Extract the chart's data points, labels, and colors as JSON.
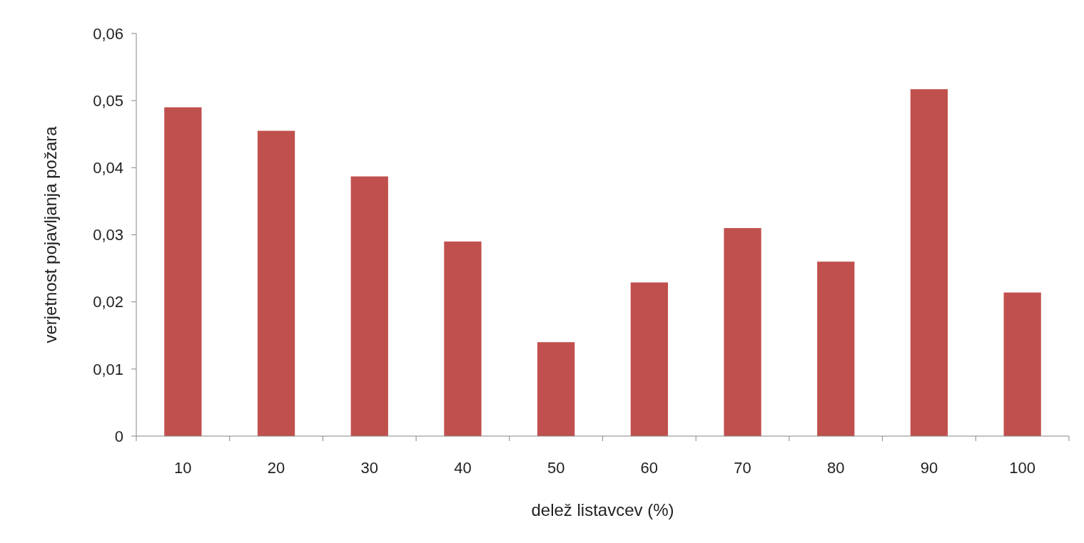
{
  "chart_data": {
    "type": "bar",
    "xlabel": "delež listavcev (%)",
    "ylabel": "verjetnost pojavljanja požara",
    "categories": [
      "10",
      "20",
      "30",
      "40",
      "50",
      "60",
      "70",
      "80",
      "90",
      "100"
    ],
    "values": [
      0.049,
      0.0455,
      0.0387,
      0.029,
      0.014,
      0.0229,
      0.031,
      0.026,
      0.0517,
      0.0214
    ],
    "color": "#c0504d",
    "ylim": [
      0,
      0.06
    ],
    "yticks": [
      0,
      {
        "value": 0.01,
        "label": "0,01"
      },
      {
        "value": 0.02,
        "label": "0,02"
      },
      {
        "value": 0.03,
        "label": "0,03"
      },
      {
        "value": 0.04,
        "label": "0,04"
      },
      {
        "value": 0.05,
        "label": "0,05"
      },
      {
        "value": 0.06,
        "label": "0,06"
      }
    ],
    "grid": false
  }
}
